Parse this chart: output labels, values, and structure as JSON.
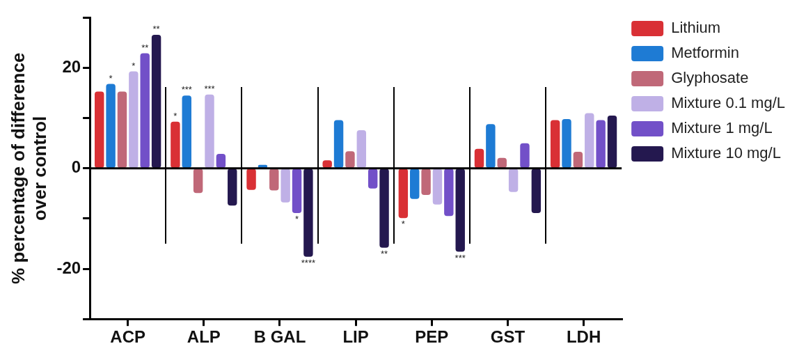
{
  "chart_data": {
    "type": "bar",
    "ylabel": "% percentage of difference\nover control",
    "categories": [
      "ACP",
      "ALP",
      "B GAL",
      "LIP",
      "PEP",
      "GST",
      "LDH"
    ],
    "series": [
      {
        "name": "Lithium",
        "color": "#d93035",
        "values": [
          15.3,
          9.3,
          -4.3,
          1.6,
          -9.9,
          3.9,
          9.6
        ],
        "value_labels": [
          null,
          "*",
          null,
          null,
          "*",
          null,
          null
        ]
      },
      {
        "name": "Metformin",
        "color": "#1e7bd4",
        "values": [
          16.8,
          14.5,
          0.7,
          9.6,
          -6.1,
          8.8,
          9.8
        ],
        "value_labels": [
          "*",
          "***",
          null,
          null,
          null,
          null,
          null
        ]
      },
      {
        "name": "Glyphosate",
        "color": "#c06878",
        "values": [
          15.3,
          -4.9,
          -4.4,
          3.4,
          -5.3,
          2.1,
          3.3
        ]
      },
      {
        "name": "Mixture 0.1 mg/L",
        "color": "#bfb0e6",
        "values": [
          19.3,
          14.7,
          -6.8,
          7.6,
          -7.2,
          -4.7,
          11
        ],
        "value_labels": [
          "*",
          "***",
          null,
          null,
          null,
          null,
          null
        ]
      },
      {
        "name": "Mixture 1 mg/L",
        "color": "#7250c8",
        "values": [
          22.9,
          2.9,
          -8.9,
          -4,
          -9.5,
          5,
          9.6
        ],
        "value_labels": [
          "**",
          null,
          "*",
          null,
          null,
          null,
          null
        ]
      },
      {
        "name": "Mixture 10 mg/L",
        "color": "#24184f",
        "values": [
          26.6,
          -7.4,
          -17.6,
          -15.8,
          -16.6,
          -8.9,
          10.5
        ],
        "value_labels": [
          "**",
          null,
          "****",
          "**",
          "***",
          null,
          null
        ]
      }
    ],
    "ylim": [
      -30,
      30
    ],
    "yticks": [
      {
        "value": -30,
        "label": null
      },
      -20,
      {
        "value": -10,
        "label": null
      },
      0,
      {
        "value": 10,
        "label": null
      },
      20,
      {
        "value": 30,
        "label": null
      }
    ],
    "ref_lines": [
      {
        "axis": "y",
        "value": 0,
        "color": "#000000"
      }
    ],
    "grid": false,
    "legend": "right"
  }
}
